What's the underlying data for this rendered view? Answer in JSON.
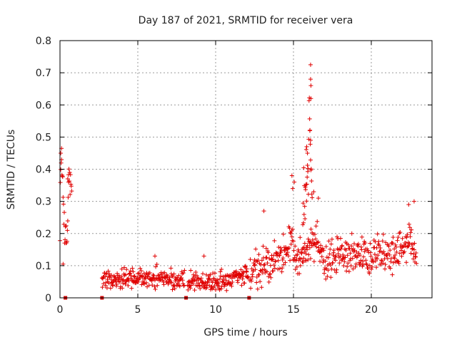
{
  "chart_data": {
    "type": "scatter",
    "title": "Day 187 of 2021, SRMTID for receiver vera",
    "xlabel": "GPS time / hours",
    "ylabel": "SRMTID / TECUs",
    "xlim": [
      0,
      23.9
    ],
    "ylim": [
      0,
      0.8
    ],
    "xticks": [
      0,
      5,
      10,
      15,
      20
    ],
    "yticks": [
      0,
      0.1,
      0.2,
      0.3,
      0.4,
      0.5,
      0.6,
      0.7,
      0.8
    ],
    "grid": true,
    "marker": "+",
    "color": "#e00000",
    "gap_markers": [
      0.35,
      2.7,
      8.1,
      12.15
    ],
    "series": [
      {
        "name": "SRMTID",
        "segments": [
          {
            "x_start": 0.0,
            "x_end": 0.75,
            "step": 0.025,
            "anchors": [
              [
                0.0,
                0.22
              ],
              [
                0.05,
                0.38
              ],
              [
                0.1,
                0.44
              ],
              [
                0.2,
                0.35
              ],
              [
                0.3,
                0.2
              ],
              [
                0.45,
                0.19
              ],
              [
                0.55,
                0.35
              ],
              [
                0.75,
                0.33
              ]
            ],
            "noise": 0.05
          },
          {
            "x_start": 2.7,
            "x_end": 8.0,
            "step": 0.025,
            "anchors": [
              [
                2.7,
                0.055
              ],
              [
                4.0,
                0.06
              ],
              [
                5.0,
                0.065
              ],
              [
                6.0,
                0.065
              ],
              [
                7.0,
                0.055
              ],
              [
                8.0,
                0.055
              ]
            ],
            "noise": 0.022
          },
          {
            "x_start": 8.2,
            "x_end": 12.1,
            "step": 0.025,
            "anchors": [
              [
                8.2,
                0.05
              ],
              [
                9.0,
                0.05
              ],
              [
                10.0,
                0.04
              ],
              [
                11.0,
                0.06
              ],
              [
                12.0,
                0.07
              ]
            ],
            "noise": 0.022
          },
          {
            "x_start": 12.2,
            "x_end": 22.9,
            "step": 0.025,
            "anchors": [
              [
                12.2,
                0.08
              ],
              [
                13.0,
                0.1
              ],
              [
                14.0,
                0.11
              ],
              [
                14.8,
                0.17
              ],
              [
                15.3,
                0.12
              ],
              [
                16.0,
                0.16
              ],
              [
                16.5,
                0.18
              ],
              [
                17.0,
                0.12
              ],
              [
                18.0,
                0.13
              ],
              [
                19.0,
                0.13
              ],
              [
                20.0,
                0.13
              ],
              [
                21.0,
                0.14
              ],
              [
                22.0,
                0.15
              ],
              [
                22.5,
                0.19
              ],
              [
                22.9,
                0.1
              ]
            ],
            "noise": 0.04
          },
          {
            "x_start": 15.6,
            "x_end": 16.2,
            "step": 0.02,
            "anchors": [
              [
                15.6,
                0.25
              ],
              [
                15.9,
                0.4
              ],
              [
                16.05,
                0.55
              ],
              [
                16.2,
                0.3
              ]
            ],
            "noise": 0.08
          }
        ],
        "points": [
          [
            16.1,
            0.725
          ],
          [
            16.1,
            0.68
          ],
          [
            16.12,
            0.66
          ],
          [
            16.12,
            0.62
          ],
          [
            16.05,
            0.52
          ],
          [
            16.1,
            0.49
          ],
          [
            15.85,
            0.47
          ],
          [
            15.9,
            0.45
          ],
          [
            14.9,
            0.38
          ],
          [
            15.05,
            0.36
          ],
          [
            14.95,
            0.34
          ],
          [
            16.3,
            0.33
          ],
          [
            13.1,
            0.27
          ],
          [
            16.6,
            0.31
          ],
          [
            22.4,
            0.29
          ],
          [
            22.75,
            0.3
          ],
          [
            12.0,
            0.09
          ],
          [
            9.25,
            0.13
          ],
          [
            6.1,
            0.13
          ],
          [
            0.05,
            0.45
          ],
          [
            0.1,
            0.43
          ],
          [
            0.2,
            0.105
          ],
          [
            0.5,
            0.37
          ],
          [
            0.55,
            0.36
          ]
        ]
      }
    ]
  }
}
